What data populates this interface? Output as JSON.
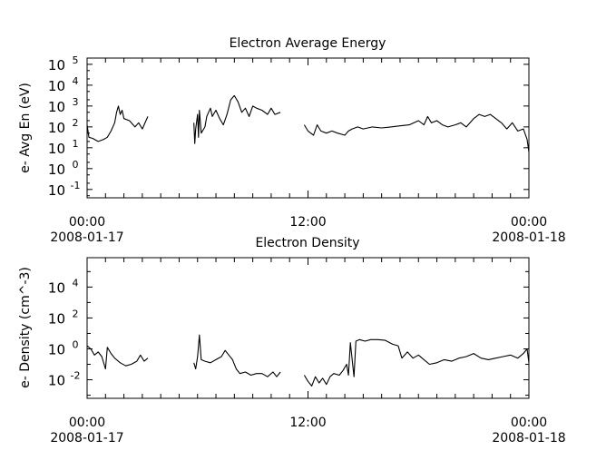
{
  "chart_data": [
    {
      "type": "line",
      "title": "Electron Average Energy",
      "ylabel": "e- Avg En (eV)",
      "xlabel": "",
      "yscale": "log",
      "ylim_exp": [
        -1.4,
        5.3
      ],
      "y_ticks": [
        {
          "base": "10",
          "exp": "-1",
          "value": 0.1
        },
        {
          "base": "10",
          "exp": "0",
          "value": 1
        },
        {
          "base": "10",
          "exp": "1",
          "value": 10
        },
        {
          "base": "10",
          "exp": "2",
          "value": 100
        },
        {
          "base": "10",
          "exp": "3",
          "value": 1000
        },
        {
          "base": "10",
          "exp": "4",
          "value": 10000
        },
        {
          "base": "10",
          "exp": "5",
          "value": 100000
        }
      ],
      "x_ticks": [
        {
          "time": "00:00",
          "date": "2008-01-17",
          "hour": 0
        },
        {
          "time": "12:00",
          "date": "",
          "hour": 12
        },
        {
          "time": "00:00",
          "date": "2008-01-18",
          "hour": 24
        }
      ],
      "xlim_hours": [
        0,
        24
      ],
      "series": [
        {
          "segments": [
            [
              [
                0,
                2.1
              ],
              [
                0.1,
                1.5
              ],
              [
                0.3,
                1.45
              ],
              [
                0.6,
                1.3
              ],
              [
                0.9,
                1.4
              ],
              [
                1.1,
                1.5
              ],
              [
                1.3,
                1.8
              ],
              [
                1.5,
                2.2
              ],
              [
                1.6,
                2.7
              ],
              [
                1.7,
                3.0
              ],
              [
                1.8,
                2.6
              ],
              [
                1.9,
                2.8
              ],
              [
                2.0,
                2.4
              ],
              [
                2.3,
                2.3
              ],
              [
                2.6,
                2.0
              ],
              [
                2.8,
                2.2
              ],
              [
                3.0,
                1.9
              ],
              [
                3.2,
                2.3
              ],
              [
                3.3,
                2.5
              ]
            ],
            [
              [
                5.8,
                2.2
              ],
              [
                5.85,
                1.2
              ],
              [
                5.9,
                1.9
              ],
              [
                6.0,
                2.6
              ],
              [
                6.05,
                1.5
              ],
              [
                6.1,
                2.8
              ],
              [
                6.2,
                1.7
              ],
              [
                6.4,
                2.0
              ],
              [
                6.5,
                2.5
              ],
              [
                6.6,
                2.7
              ],
              [
                6.7,
                2.9
              ],
              [
                6.8,
                2.5
              ],
              [
                7.0,
                2.8
              ],
              [
                7.2,
                2.4
              ],
              [
                7.4,
                2.1
              ],
              [
                7.6,
                2.6
              ],
              [
                7.8,
                3.3
              ],
              [
                8.0,
                3.5
              ],
              [
                8.2,
                3.2
              ],
              [
                8.4,
                2.7
              ],
              [
                8.6,
                2.9
              ],
              [
                8.8,
                2.5
              ],
              [
                9.0,
                3.0
              ],
              [
                9.2,
                2.9
              ],
              [
                9.5,
                2.8
              ],
              [
                9.8,
                2.6
              ],
              [
                10.0,
                2.9
              ],
              [
                10.2,
                2.6
              ],
              [
                10.5,
                2.7
              ]
            ],
            [
              [
                11.8,
                2.1
              ],
              [
                12.0,
                1.8
              ],
              [
                12.3,
                1.6
              ],
              [
                12.5,
                2.1
              ],
              [
                12.7,
                1.8
              ],
              [
                13.0,
                1.7
              ],
              [
                13.3,
                1.8
              ],
              [
                13.6,
                1.7
              ],
              [
                14.0,
                1.6
              ],
              [
                14.2,
                1.8
              ],
              [
                14.4,
                1.9
              ],
              [
                14.7,
                2.0
              ],
              [
                15.0,
                1.9
              ],
              [
                15.5,
                2.0
              ],
              [
                16.0,
                1.95
              ],
              [
                16.5,
                2.0
              ],
              [
                17.0,
                2.05
              ],
              [
                17.5,
                2.1
              ],
              [
                18.0,
                2.3
              ],
              [
                18.3,
                2.1
              ],
              [
                18.5,
                2.5
              ],
              [
                18.7,
                2.2
              ],
              [
                19.0,
                2.3
              ],
              [
                19.3,
                2.1
              ],
              [
                19.6,
                2.0
              ],
              [
                20.0,
                2.1
              ],
              [
                20.3,
                2.2
              ],
              [
                20.6,
                2.0
              ],
              [
                21.0,
                2.4
              ],
              [
                21.3,
                2.6
              ],
              [
                21.6,
                2.5
              ],
              [
                21.9,
                2.6
              ],
              [
                22.2,
                2.4
              ],
              [
                22.5,
                2.2
              ],
              [
                22.8,
                1.9
              ],
              [
                23.1,
                2.2
              ],
              [
                23.4,
                1.8
              ],
              [
                23.7,
                1.9
              ],
              [
                23.9,
                1.4
              ],
              [
                24.0,
                0.8
              ]
            ]
          ]
        }
      ]
    },
    {
      "type": "line",
      "title": "Electron Density",
      "ylabel": "e- Density (cm^-3)",
      "xlabel": "",
      "yscale": "log",
      "ylim_exp": [
        -3.2,
        5.9
      ],
      "y_ticks": [
        {
          "base": "10",
          "exp": "-2",
          "value": 0.01
        },
        {
          "base": "10",
          "exp": "0",
          "value": 1
        },
        {
          "base": "10",
          "exp": "2",
          "value": 100
        },
        {
          "base": "10",
          "exp": "4",
          "value": 10000
        }
      ],
      "x_ticks": [
        {
          "time": "00:00",
          "date": "2008-01-17",
          "hour": 0
        },
        {
          "time": "12:00",
          "date": "",
          "hour": 12
        },
        {
          "time": "00:00",
          "date": "2008-01-18",
          "hour": 24
        }
      ],
      "xlim_hours": [
        0,
        24
      ],
      "series": [
        {
          "segments": [
            [
              [
                0,
                0.2
              ],
              [
                0.2,
                0.0
              ],
              [
                0.4,
                -0.4
              ],
              [
                0.6,
                -0.2
              ],
              [
                0.8,
                -0.5
              ],
              [
                1.0,
                -1.3
              ],
              [
                1.1,
                0.1
              ],
              [
                1.3,
                -0.3
              ],
              [
                1.5,
                -0.6
              ],
              [
                1.8,
                -0.9
              ],
              [
                2.1,
                -1.1
              ],
              [
                2.4,
                -1.0
              ],
              [
                2.7,
                -0.8
              ],
              [
                2.9,
                -0.4
              ],
              [
                3.1,
                -0.8
              ],
              [
                3.3,
                -0.6
              ]
            ],
            [
              [
                5.8,
                -0.9
              ],
              [
                5.9,
                -1.3
              ],
              [
                6.0,
                -0.5
              ],
              [
                6.1,
                0.9
              ],
              [
                6.2,
                -0.7
              ],
              [
                6.4,
                -0.8
              ],
              [
                6.7,
                -0.9
              ],
              [
                7.0,
                -0.7
              ],
              [
                7.3,
                -0.5
              ],
              [
                7.5,
                -0.1
              ],
              [
                7.7,
                -0.4
              ],
              [
                7.9,
                -0.7
              ],
              [
                8.1,
                -1.3
              ],
              [
                8.3,
                -1.6
              ],
              [
                8.6,
                -1.5
              ],
              [
                8.9,
                -1.7
              ],
              [
                9.2,
                -1.6
              ],
              [
                9.5,
                -1.6
              ],
              [
                9.8,
                -1.8
              ],
              [
                10.1,
                -1.5
              ],
              [
                10.3,
                -1.8
              ],
              [
                10.5,
                -1.5
              ]
            ],
            [
              [
                11.8,
                -1.7
              ],
              [
                12.0,
                -2.1
              ],
              [
                12.2,
                -2.4
              ],
              [
                12.4,
                -1.8
              ],
              [
                12.6,
                -2.2
              ],
              [
                12.8,
                -1.9
              ],
              [
                13.0,
                -2.3
              ],
              [
                13.2,
                -1.8
              ],
              [
                13.4,
                -1.6
              ],
              [
                13.7,
                -1.7
              ],
              [
                13.9,
                -1.4
              ],
              [
                14.1,
                -1.0
              ],
              [
                14.2,
                -1.7
              ],
              [
                14.3,
                0.4
              ],
              [
                14.5,
                -1.8
              ],
              [
                14.6,
                0.5
              ],
              [
                14.8,
                0.6
              ],
              [
                15.1,
                0.5
              ],
              [
                15.4,
                0.6
              ],
              [
                15.8,
                0.6
              ],
              [
                16.2,
                0.55
              ],
              [
                16.6,
                0.3
              ],
              [
                16.9,
                0.2
              ],
              [
                17.1,
                -0.6
              ],
              [
                17.4,
                -0.2
              ],
              [
                17.7,
                -0.6
              ],
              [
                18.0,
                -0.4
              ],
              [
                18.3,
                -0.7
              ],
              [
                18.6,
                -1.0
              ],
              [
                19.0,
                -0.9
              ],
              [
                19.4,
                -0.7
              ],
              [
                19.8,
                -0.8
              ],
              [
                20.2,
                -0.6
              ],
              [
                20.6,
                -0.5
              ],
              [
                21.0,
                -0.3
              ],
              [
                21.4,
                -0.6
              ],
              [
                21.8,
                -0.7
              ],
              [
                22.2,
                -0.6
              ],
              [
                22.6,
                -0.5
              ],
              [
                23.0,
                -0.4
              ],
              [
                23.4,
                -0.6
              ],
              [
                23.7,
                -0.3
              ],
              [
                23.9,
                0.0
              ],
              [
                24.0,
                -0.9
              ]
            ]
          ]
        }
      ]
    }
  ]
}
